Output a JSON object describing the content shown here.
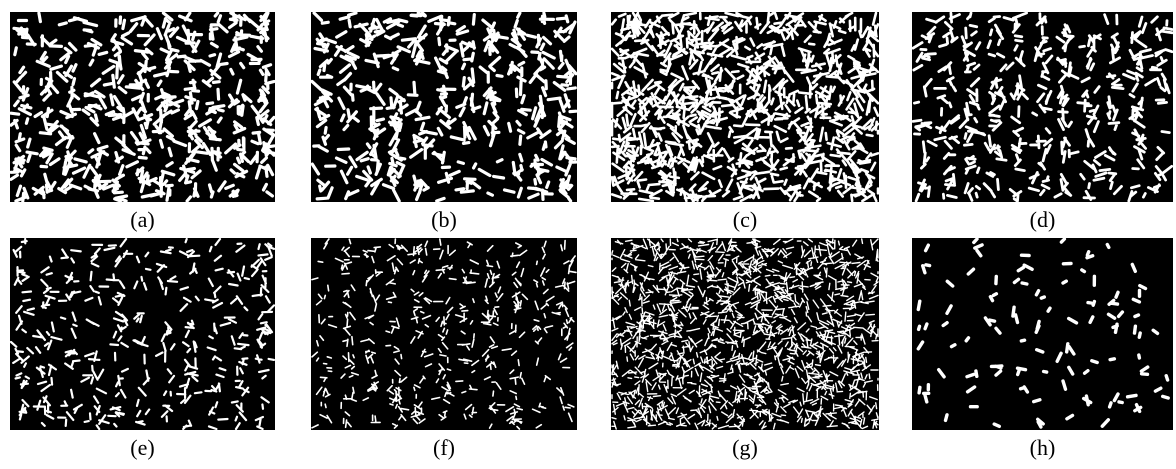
{
  "panels": [
    {
      "caption": "(a)"
    },
    {
      "caption": "(b)"
    },
    {
      "caption": "(c)"
    },
    {
      "caption": "(d)"
    },
    {
      "caption": "(e)"
    },
    {
      "caption": "(f)"
    },
    {
      "caption": "(g)"
    },
    {
      "caption": "(h)"
    }
  ]
}
